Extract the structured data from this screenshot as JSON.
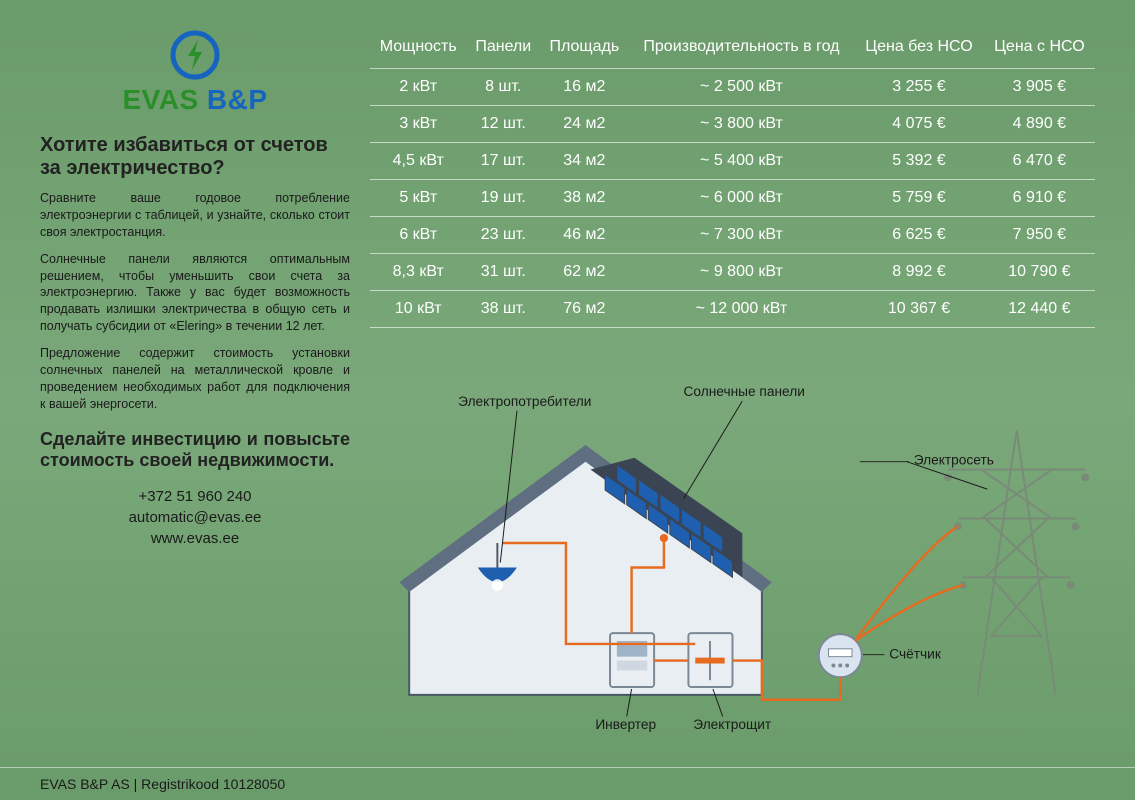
{
  "brand": {
    "name_pre": "EVAS ",
    "name_post": "B&P",
    "logo_primary_color": "#1565c0",
    "logo_accent_color": "#2a8f2a"
  },
  "left": {
    "heading": "Хотите избавиться от счетов за электричество?",
    "p1": "Сравните ваше годовое потребление электроэнергии с таблицей, и узнайте, сколько стоит своя электростанция.",
    "p2": "Солнечные панели являются оптимальным решением, чтобы уменьшить свои счета за электроэнергию. Также у вас будет возможность продавать излишки электричества в общую сеть и получать субсидии от «Elering» в течении 12 лет.",
    "p3": "Предложение содержит стоимость установки солнечных панелей на металлической кровле и проведением необходимых работ для подключения к вашей энергосети.",
    "subheading": "Сделайте инвестицию и повысьте стоимость своей недвижимости.",
    "phone": "+372 51 960 240",
    "email": "automatic@evas.ee",
    "website": "www.evas.ee"
  },
  "table": {
    "columns": [
      "Мощность",
      "Панели",
      "Площадь",
      "Производительность в год",
      "Цена без НСО",
      "Цена с НСО"
    ],
    "rows": [
      [
        "2 кВт",
        "8 шт.",
        "16 м2",
        "~ 2 500 кВт",
        "3 255 €",
        "3 905 €"
      ],
      [
        "3 кВт",
        "12 шт.",
        "24 м2",
        "~ 3 800 кВт",
        "4 075 €",
        "4 890 €"
      ],
      [
        "4,5 кВт",
        "17 шт.",
        "34 м2",
        "~ 5 400 кВт",
        "5 392 €",
        "6 470 €"
      ],
      [
        "5 кВт",
        "19 шт.",
        "38 м2",
        "~ 6 000 кВт",
        "5 759 €",
        "6 910 €"
      ],
      [
        "6 кВт",
        "23 шт.",
        "46 м2",
        "~ 7 300 кВт",
        "6 625 €",
        "7 950 €"
      ],
      [
        "8,3 кВт",
        "31 шт.",
        "62 м2",
        "~ 9 800 кВт",
        "8 992 €",
        "10 790 €"
      ],
      [
        "10 кВт",
        "38 шт.",
        "76 м2",
        "~ 12 000 кВт",
        "10 367 €",
        "12 440 €"
      ]
    ],
    "text_color": "#ffffff",
    "rule_color": "rgba(255,255,255,0.6)",
    "header_fontsize": 16,
    "cell_fontsize": 16
  },
  "diagram": {
    "labels": {
      "consumers": "Электропотребители",
      "panels": "Солнечные панели",
      "grid": "Электросеть",
      "meter": "Счётчик",
      "inverter": "Инвертер",
      "panelboard": "Электрощит"
    },
    "colors": {
      "house_fill": "#e9eef2",
      "house_stroke": "#4a5766",
      "roof_fill": "#5f6e80",
      "panel_frame": "#3a4452",
      "panel_cell": "#1f5fb0",
      "wire": "#e66b1f",
      "box_fill": "#e9eef2",
      "box_stroke": "#7a8794",
      "meter_fill": "#d9e4f0",
      "pylon": "#7a8a78",
      "label": "#1a1a1a"
    }
  },
  "footer": {
    "text": "EVAS B&P AS | Registrikood  10128050"
  },
  "theme": {
    "background_gradient": [
      "#6a9b6a",
      "#7aa87a",
      "#6a9b6a"
    ]
  }
}
